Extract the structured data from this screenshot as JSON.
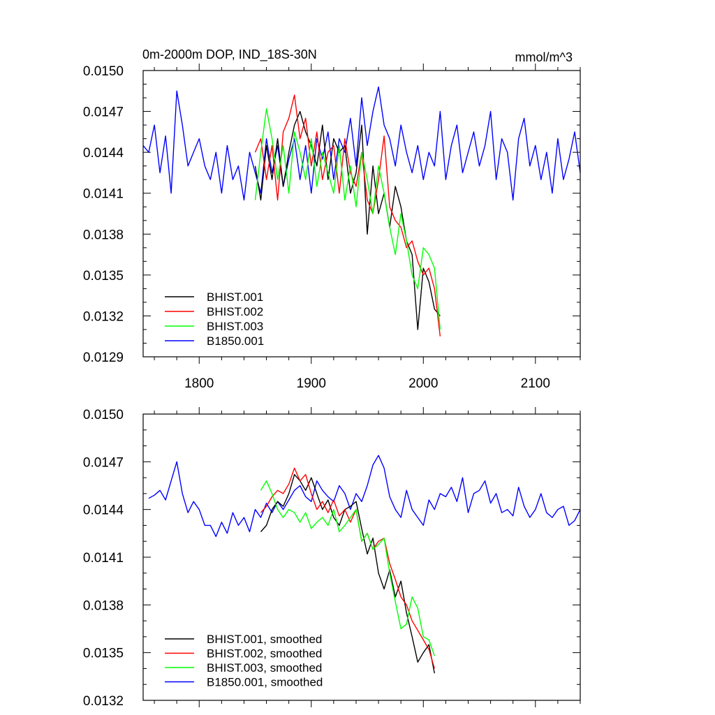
{
  "chart_data": [
    {
      "type": "line",
      "title": "0m-2000m DOP, IND_18S-30N",
      "units": "mmol/m^3",
      "xlim": [
        1750,
        2140
      ],
      "ylim": [
        0.0129,
        0.015
      ],
      "xticks": [
        1800,
        1900,
        2000,
        2100
      ],
      "xticklabels": [
        "1800",
        "1900",
        "2000",
        "2100"
      ],
      "yticks": [
        0.0129,
        0.0132,
        0.0135,
        0.0138,
        0.0141,
        0.0144,
        0.0147,
        0.015
      ],
      "yticklabels": [
        "0.0129",
        "0.0132",
        "0.0135",
        "0.0138",
        "0.0141",
        "0.0144",
        "0.0147",
        "0.0150"
      ],
      "legend_position": "bottom-left",
      "series": [
        {
          "name": "BHIST.001",
          "color": "#000000",
          "x": [
            1850,
            1855,
            1860,
            1865,
            1870,
            1875,
            1880,
            1885,
            1890,
            1895,
            1900,
            1905,
            1910,
            1915,
            1920,
            1925,
            1930,
            1935,
            1940,
            1945,
            1950,
            1955,
            1960,
            1965,
            1970,
            1975,
            1980,
            1985,
            1990,
            1995,
            2000,
            2005,
            2010,
            2015
          ],
          "y": [
            0.0143,
            0.01405,
            0.01445,
            0.0142,
            0.0145,
            0.01415,
            0.0144,
            0.0146,
            0.0147,
            0.01455,
            0.01445,
            0.0143,
            0.0146,
            0.0142,
            0.0145,
            0.0144,
            0.01445,
            0.0141,
            0.01425,
            0.0146,
            0.0138,
            0.0143,
            0.01395,
            0.0141,
            0.01385,
            0.01415,
            0.014,
            0.01375,
            0.01365,
            0.0131,
            0.01355,
            0.01345,
            0.01325,
            0.0132
          ]
        },
        {
          "name": "BHIST.002",
          "color": "#ff0000",
          "x": [
            1850,
            1855,
            1860,
            1865,
            1870,
            1875,
            1880,
            1885,
            1890,
            1895,
            1900,
            1905,
            1910,
            1915,
            1920,
            1925,
            1930,
            1935,
            1940,
            1945,
            1950,
            1955,
            1960,
            1965,
            1970,
            1975,
            1980,
            1985,
            1990,
            1995,
            2000,
            2005,
            2010,
            2015
          ],
          "y": [
            0.0144,
            0.0145,
            0.0142,
            0.01445,
            0.01405,
            0.01455,
            0.01465,
            0.01482,
            0.0145,
            0.01465,
            0.0143,
            0.01455,
            0.0142,
            0.0144,
            0.01445,
            0.0141,
            0.0145,
            0.01425,
            0.01415,
            0.0144,
            0.01405,
            0.01395,
            0.0142,
            0.01452,
            0.014,
            0.0139,
            0.01385,
            0.0137,
            0.01375,
            0.0136,
            0.0135,
            0.01355,
            0.0134,
            0.01305
          ]
        },
        {
          "name": "BHIST.003",
          "color": "#00ff00",
          "x": [
            1850,
            1855,
            1860,
            1865,
            1870,
            1875,
            1880,
            1885,
            1890,
            1895,
            1900,
            1905,
            1910,
            1915,
            1920,
            1925,
            1930,
            1935,
            1940,
            1945,
            1950,
            1955,
            1960,
            1965,
            1970,
            1975,
            1980,
            1985,
            1990,
            1995,
            2000,
            2005,
            2010,
            2015
          ],
          "y": [
            0.01405,
            0.0144,
            0.01472,
            0.0145,
            0.0142,
            0.01445,
            0.0141,
            0.01455,
            0.0144,
            0.0142,
            0.0145,
            0.01415,
            0.0144,
            0.01425,
            0.0141,
            0.01445,
            0.01405,
            0.0143,
            0.014,
            0.0144,
            0.0142,
            0.01395,
            0.0143,
            0.0141,
            0.01385,
            0.01365,
            0.01395,
            0.01375,
            0.0135,
            0.0134,
            0.0137,
            0.01365,
            0.01355,
            0.0131
          ]
        },
        {
          "name": "B1850.001",
          "color": "#0000ff",
          "x": [
            1750,
            1755,
            1760,
            1765,
            1770,
            1775,
            1780,
            1785,
            1790,
            1795,
            1800,
            1805,
            1810,
            1815,
            1820,
            1825,
            1830,
            1835,
            1840,
            1845,
            1850,
            1855,
            1860,
            1865,
            1870,
            1875,
            1880,
            1885,
            1890,
            1895,
            1900,
            1905,
            1910,
            1915,
            1920,
            1925,
            1930,
            1935,
            1940,
            1945,
            1950,
            1955,
            1960,
            1965,
            1970,
            1975,
            1980,
            1985,
            1990,
            1995,
            2000,
            2005,
            2010,
            2015,
            2020,
            2025,
            2030,
            2035,
            2040,
            2045,
            2050,
            2055,
            2060,
            2065,
            2070,
            2075,
            2080,
            2085,
            2090,
            2095,
            2100,
            2105,
            2110,
            2115,
            2120,
            2125,
            2130,
            2135,
            2140
          ],
          "y": [
            0.01445,
            0.0144,
            0.0146,
            0.01425,
            0.01452,
            0.0141,
            0.01485,
            0.0146,
            0.0143,
            0.0144,
            0.0145,
            0.0143,
            0.0142,
            0.0144,
            0.0141,
            0.01445,
            0.0142,
            0.0143,
            0.01405,
            0.0144,
            0.01425,
            0.0141,
            0.0145,
            0.01425,
            0.01445,
            0.01415,
            0.01435,
            0.0145,
            0.0142,
            0.01445,
            0.0141,
            0.0145,
            0.01435,
            0.01455,
            0.0142,
            0.0145,
            0.0144,
            0.01465,
            0.0143,
            0.0148,
            0.01445,
            0.0147,
            0.01488,
            0.0146,
            0.0145,
            0.0143,
            0.0146,
            0.0144,
            0.01425,
            0.01445,
            0.0142,
            0.0144,
            0.0143,
            0.0147,
            0.0142,
            0.01445,
            0.0146,
            0.01425,
            0.0144,
            0.01455,
            0.0143,
            0.01445,
            0.0147,
            0.0142,
            0.0145,
            0.0144,
            0.01405,
            0.0145,
            0.01465,
            0.0143,
            0.01445,
            0.0142,
            0.0144,
            0.0141,
            0.0145,
            0.0142,
            0.01435,
            0.01455,
            0.01425
          ]
        }
      ]
    },
    {
      "type": "line",
      "title": "",
      "xlim": [
        1750,
        2140
      ],
      "ylim": [
        0.0132,
        0.015
      ],
      "xticks": [
        1800,
        1900,
        2000,
        2100
      ],
      "xticklabels": [],
      "yticks": [
        0.0132,
        0.0135,
        0.0138,
        0.0141,
        0.0144,
        0.0147,
        0.015
      ],
      "yticklabels": [
        "0.0132",
        "0.0135",
        "0.0138",
        "0.0141",
        "0.0144",
        "0.0147",
        "0.0150"
      ],
      "legend_position": "bottom-left",
      "series": [
        {
          "name": "BHIST.001, smoothed",
          "color": "#000000",
          "x": [
            1855,
            1860,
            1865,
            1870,
            1875,
            1880,
            1885,
            1890,
            1895,
            1900,
            1905,
            1910,
            1915,
            1920,
            1925,
            1930,
            1935,
            1940,
            1945,
            1950,
            1955,
            1960,
            1965,
            1970,
            1975,
            1980,
            1985,
            1990,
            1995,
            2000,
            2005,
            2010
          ],
          "y": [
            0.01426,
            0.0143,
            0.0144,
            0.01445,
            0.01442,
            0.0145,
            0.01462,
            0.01458,
            0.01452,
            0.0146,
            0.0145,
            0.0144,
            0.01446,
            0.01435,
            0.0143,
            0.0144,
            0.01442,
            0.01445,
            0.01428,
            0.01412,
            0.01422,
            0.014,
            0.0139,
            0.01402,
            0.01385,
            0.01395,
            0.01375,
            0.0136,
            0.01344,
            0.0135,
            0.01355,
            0.01337
          ]
        },
        {
          "name": "BHIST.002, smoothed",
          "color": "#ff0000",
          "x": [
            1855,
            1860,
            1865,
            1870,
            1875,
            1880,
            1885,
            1890,
            1895,
            1900,
            1905,
            1910,
            1915,
            1920,
            1925,
            1930,
            1935,
            1940,
            1945,
            1950,
            1955,
            1960,
            1965,
            1970,
            1975,
            1980,
            1985,
            1990,
            1995,
            2000,
            2005,
            2010
          ],
          "y": [
            0.01438,
            0.01442,
            0.01448,
            0.01452,
            0.0145,
            0.01456,
            0.01466,
            0.01458,
            0.01462,
            0.0145,
            0.0144,
            0.01445,
            0.01438,
            0.01446,
            0.01436,
            0.0144,
            0.01432,
            0.0144,
            0.0142,
            0.01425,
            0.01415,
            0.0142,
            0.01422,
            0.01406,
            0.01396,
            0.01385,
            0.0138,
            0.0137,
            0.01364,
            0.01358,
            0.01352,
            0.0134
          ]
        },
        {
          "name": "BHIST.003, smoothed",
          "color": "#00ff00",
          "x": [
            1855,
            1860,
            1865,
            1870,
            1875,
            1880,
            1885,
            1890,
            1895,
            1900,
            1905,
            1910,
            1915,
            1920,
            1925,
            1930,
            1935,
            1940,
            1945,
            1950,
            1955,
            1960,
            1965,
            1970,
            1975,
            1980,
            1985,
            1990,
            1995,
            2000,
            2005,
            2010
          ],
          "y": [
            0.01452,
            0.01458,
            0.0145,
            0.0144,
            0.01435,
            0.0144,
            0.01438,
            0.01432,
            0.01438,
            0.01428,
            0.01432,
            0.01435,
            0.0143,
            0.0144,
            0.01426,
            0.0143,
            0.01435,
            0.0144,
            0.0142,
            0.01425,
            0.01415,
            0.01418,
            0.01422,
            0.014,
            0.01382,
            0.01365,
            0.01368,
            0.01385,
            0.01378,
            0.0136,
            0.01358,
            0.01348
          ]
        },
        {
          "name": "B1850.001, smoothed",
          "color": "#0000ff",
          "x": [
            1755,
            1760,
            1765,
            1770,
            1775,
            1780,
            1785,
            1790,
            1795,
            1800,
            1805,
            1810,
            1815,
            1820,
            1825,
            1830,
            1835,
            1840,
            1845,
            1850,
            1855,
            1860,
            1865,
            1870,
            1875,
            1880,
            1885,
            1890,
            1895,
            1900,
            1905,
            1910,
            1915,
            1920,
            1925,
            1930,
            1935,
            1940,
            1945,
            1950,
            1955,
            1960,
            1965,
            1970,
            1975,
            1980,
            1985,
            1990,
            1995,
            2000,
            2005,
            2010,
            2015,
            2020,
            2025,
            2030,
            2035,
            2040,
            2045,
            2050,
            2055,
            2060,
            2065,
            2070,
            2075,
            2080,
            2085,
            2090,
            2095,
            2100,
            2105,
            2110,
            2115,
            2120,
            2125,
            2130,
            2135,
            2140
          ],
          "y": [
            0.01447,
            0.01449,
            0.01452,
            0.01446,
            0.01458,
            0.0147,
            0.0145,
            0.01438,
            0.01445,
            0.0144,
            0.0143,
            0.0143,
            0.01423,
            0.01432,
            0.01425,
            0.01438,
            0.0143,
            0.01435,
            0.01426,
            0.0144,
            0.01435,
            0.01444,
            0.01438,
            0.01445,
            0.0144,
            0.01446,
            0.01452,
            0.01455,
            0.01448,
            0.01445,
            0.01458,
            0.01452,
            0.01448,
            0.01445,
            0.01455,
            0.0145,
            0.0144,
            0.0145,
            0.01445,
            0.01455,
            0.01468,
            0.01474,
            0.01466,
            0.01448,
            0.0144,
            0.01435,
            0.01452,
            0.0144,
            0.01435,
            0.0143,
            0.01446,
            0.0144,
            0.0145,
            0.01448,
            0.01454,
            0.01445,
            0.0146,
            0.01438,
            0.0145,
            0.01452,
            0.01458,
            0.01444,
            0.0145,
            0.01438,
            0.0144,
            0.01436,
            0.01454,
            0.01442,
            0.01435,
            0.0144,
            0.0145,
            0.01438,
            0.01435,
            0.0144,
            0.01442,
            0.0143,
            0.01433,
            0.0144
          ]
        }
      ]
    }
  ]
}
